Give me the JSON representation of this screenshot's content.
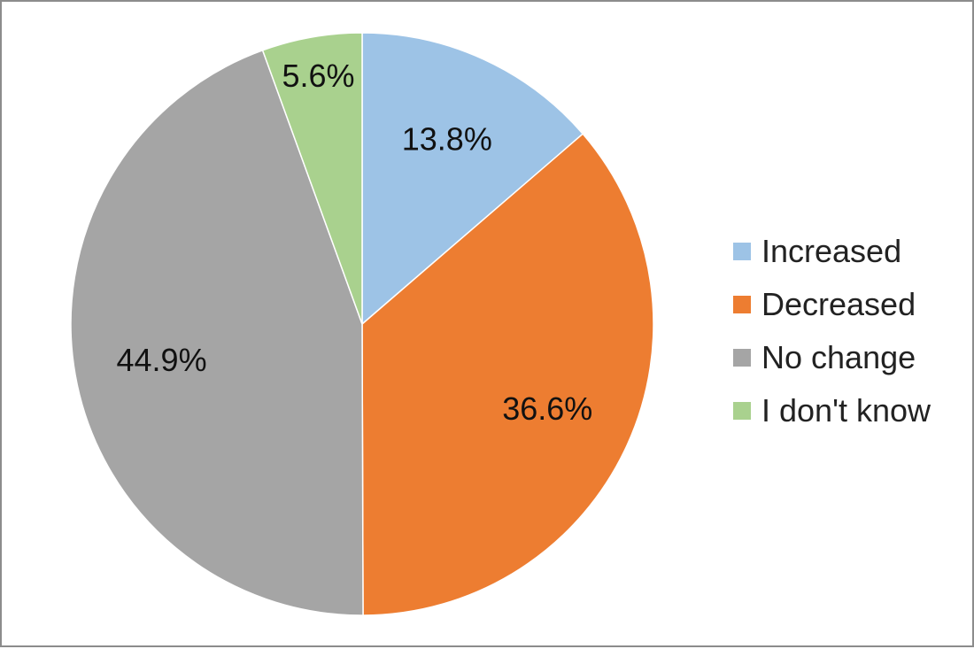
{
  "chart_data": {
    "type": "pie",
    "title": "",
    "slices": [
      {
        "label": "Increased",
        "value": 13.8,
        "display": "13.8%",
        "color": "#9dc3e6"
      },
      {
        "label": "Decreased",
        "value": 36.6,
        "display": "36.6%",
        "color": "#ed7d31"
      },
      {
        "label": "No change",
        "value": 44.9,
        "display": "44.9%",
        "color": "#a5a5a5"
      },
      {
        "label": "I don't know",
        "value": 5.6,
        "display": "5.6%",
        "color": "#a9d18e"
      }
    ],
    "start_angle_deg": 0,
    "direction": "clockwise",
    "legend_position": "right",
    "data_labels": "inside"
  }
}
